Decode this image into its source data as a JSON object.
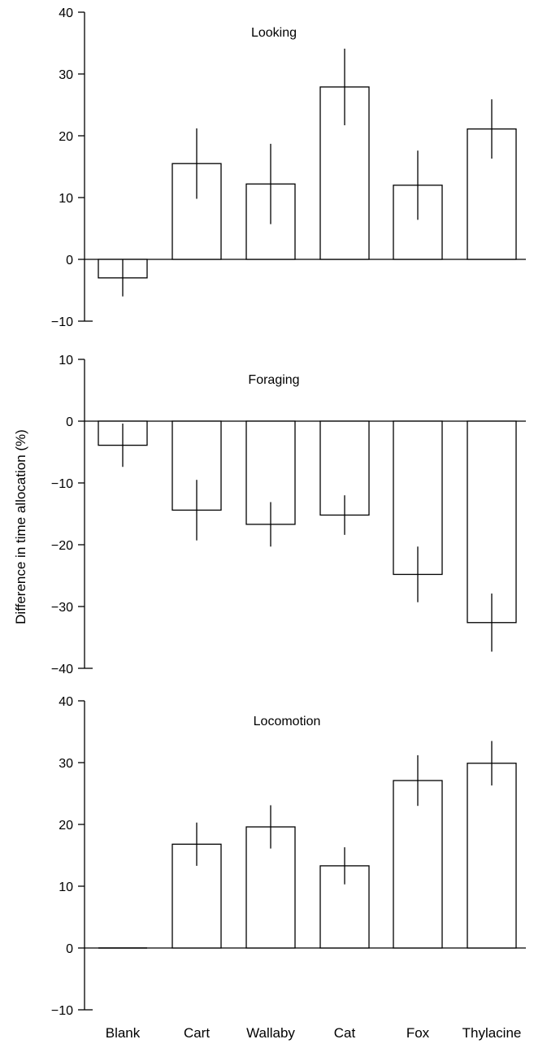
{
  "ylabel": "Difference in time allocation (%)",
  "categories": [
    "Blank",
    "Cart",
    "Wallaby",
    "Cat",
    "Fox",
    "Thylacine"
  ],
  "chart_data": [
    {
      "type": "bar",
      "title": "Looking",
      "categories": [
        "Blank",
        "Cart",
        "Wallaby",
        "Cat",
        "Fox",
        "Thylacine"
      ],
      "values": [
        -3,
        15.5,
        12.2,
        27.9,
        12,
        21.1
      ],
      "error": [
        3,
        5.7,
        6.5,
        6.2,
        5.6,
        4.8
      ],
      "ylim": [
        -10,
        40
      ],
      "yticks": [
        -10,
        0,
        10,
        20,
        30,
        40
      ],
      "ytick_labels": [
        "−10",
        "0",
        "10",
        "20",
        "30",
        "40"
      ],
      "ylabel": "Difference in time allocation (%)"
    },
    {
      "type": "bar",
      "title": "Foraging",
      "categories": [
        "Blank",
        "Cart",
        "Wallaby",
        "Cat",
        "Fox",
        "Thylacine"
      ],
      "values": [
        -3.9,
        -14.4,
        -16.7,
        -15.2,
        -24.8,
        -32.6
      ],
      "error": [
        3.5,
        4.9,
        3.6,
        3.2,
        4.5,
        4.7
      ],
      "ylim": [
        -40,
        10
      ],
      "yticks": [
        -40,
        -30,
        -20,
        -10,
        0,
        10
      ],
      "ytick_labels": [
        "−40",
        "−30",
        "−20",
        "−10",
        "0",
        "10"
      ],
      "ylabel": "Difference in time allocation (%)"
    },
    {
      "type": "bar",
      "title": "Locomotion",
      "categories": [
        "Blank",
        "Cart",
        "Wallaby",
        "Cat",
        "Fox",
        "Thylacine"
      ],
      "values": [
        0,
        16.8,
        19.6,
        13.3,
        27.1,
        29.9
      ],
      "error": [
        0,
        3.5,
        3.5,
        3,
        4.1,
        3.6
      ],
      "ylim": [
        -10,
        40
      ],
      "yticks": [
        -10,
        0,
        10,
        20,
        30,
        40
      ],
      "ytick_labels": [
        "−10",
        "0",
        "10",
        "20",
        "30",
        "40"
      ],
      "ylabel": "Difference in time allocation (%)"
    }
  ]
}
